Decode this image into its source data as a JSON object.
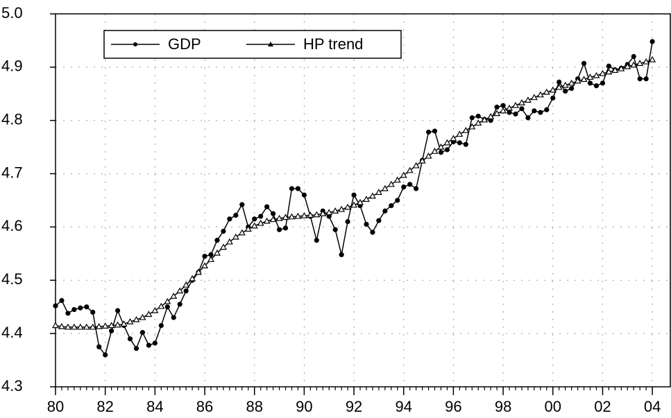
{
  "chart_data": {
    "type": "line",
    "x": [
      1980,
      1980.25,
      1980.5,
      1980.75,
      1981,
      1981.25,
      1981.5,
      1981.75,
      1982,
      1982.25,
      1982.5,
      1982.75,
      1983,
      1983.25,
      1983.5,
      1983.75,
      1984,
      1984.25,
      1984.5,
      1984.75,
      1985,
      1985.25,
      1985.5,
      1985.75,
      1986,
      1986.25,
      1986.5,
      1986.75,
      1987,
      1987.25,
      1987.5,
      1987.75,
      1988,
      1988.25,
      1988.5,
      1988.75,
      1989,
      1989.25,
      1989.5,
      1989.75,
      1990,
      1990.25,
      1990.5,
      1990.75,
      1991,
      1991.25,
      1991.5,
      1991.75,
      1992,
      1992.25,
      1992.5,
      1992.75,
      1993,
      1993.25,
      1993.5,
      1993.75,
      1994,
      1994.25,
      1994.5,
      1994.75,
      1995,
      1995.25,
      1995.5,
      1995.75,
      1996,
      1996.25,
      1996.5,
      1996.75,
      1997,
      1997.25,
      1997.5,
      1997.75,
      1998,
      1998.25,
      1998.5,
      1998.75,
      1999,
      1999.25,
      1999.5,
      1999.75,
      2000,
      2000.25,
      2000.5,
      2000.75,
      2001,
      2001.25,
      2001.5,
      2001.75,
      2002,
      2002.25,
      2002.5,
      2002.75,
      2003,
      2003.25,
      2003.5,
      2003.75,
      2004
    ],
    "series": [
      {
        "name": "GDP",
        "color": "#000000",
        "marker": "circle",
        "values": [
          4.452,
          4.462,
          4.438,
          4.445,
          4.448,
          4.45,
          4.44,
          4.375,
          4.36,
          4.405,
          4.443,
          4.415,
          4.39,
          4.372,
          4.402,
          4.378,
          4.382,
          4.415,
          4.45,
          4.43,
          4.455,
          4.48,
          4.5,
          4.515,
          4.545,
          4.548,
          4.575,
          4.592,
          4.615,
          4.622,
          4.642,
          4.6,
          4.615,
          4.62,
          4.638,
          4.625,
          4.595,
          4.598,
          4.672,
          4.672,
          4.66,
          4.62,
          4.575,
          4.63,
          4.62,
          4.595,
          4.548,
          4.61,
          4.66,
          4.64,
          4.605,
          4.59,
          4.612,
          4.63,
          4.64,
          4.65,
          4.675,
          4.68,
          4.672,
          4.725,
          4.778,
          4.78,
          4.74,
          4.745,
          4.76,
          4.758,
          4.755,
          4.805,
          4.808,
          4.802,
          4.8,
          4.825,
          4.828,
          4.815,
          4.812,
          4.822,
          4.805,
          4.818,
          4.815,
          4.82,
          4.842,
          4.872,
          4.855,
          4.86,
          4.878,
          4.907,
          4.87,
          4.865,
          4.87,
          4.902,
          4.895,
          4.898,
          4.905,
          4.92,
          4.878,
          4.878,
          4.948
        ]
      },
      {
        "name": "HP trend",
        "color": "#000000",
        "marker": "triangle",
        "values": [
          4.415,
          4.413,
          4.412,
          4.412,
          4.412,
          4.412,
          4.412,
          4.413,
          4.414,
          4.415,
          4.416,
          4.418,
          4.422,
          4.426,
          4.43,
          4.436,
          4.443,
          4.451,
          4.46,
          4.47,
          4.48,
          4.491,
          4.503,
          4.515,
          4.527,
          4.539,
          4.551,
          4.562,
          4.572,
          4.581,
          4.589,
          4.596,
          4.602,
          4.607,
          4.611,
          4.614,
          4.616,
          4.618,
          4.619,
          4.62,
          4.621,
          4.622,
          4.623,
          4.625,
          4.627,
          4.63,
          4.633,
          4.637,
          4.641,
          4.646,
          4.652,
          4.658,
          4.665,
          4.672,
          4.68,
          4.688,
          4.697,
          4.706,
          4.715,
          4.724,
          4.733,
          4.742,
          4.75,
          4.758,
          4.766,
          4.774,
          4.781,
          4.788,
          4.795,
          4.801,
          4.807,
          4.813,
          4.818,
          4.823,
          4.828,
          4.833,
          4.838,
          4.843,
          4.848,
          4.853,
          4.857,
          4.862,
          4.866,
          4.87,
          4.874,
          4.877,
          4.881,
          4.884,
          4.888,
          4.891,
          4.894,
          4.897,
          4.901,
          4.904,
          4.907,
          4.91,
          4.914
        ]
      }
    ],
    "xlim": [
      1980,
      2004.75
    ],
    "xticks": [
      {
        "value": 1980,
        "label": "80"
      },
      {
        "value": 1982,
        "label": "82"
      },
      {
        "value": 1984,
        "label": "84"
      },
      {
        "value": 1986,
        "label": "86"
      },
      {
        "value": 1988,
        "label": "88"
      },
      {
        "value": 1990,
        "label": "90"
      },
      {
        "value": 1992,
        "label": "92"
      },
      {
        "value": 1994,
        "label": "94"
      },
      {
        "value": 1996,
        "label": "96"
      },
      {
        "value": 1998,
        "label": "98"
      },
      {
        "value": 2000,
        "label": "00"
      },
      {
        "value": 2002,
        "label": "02"
      },
      {
        "value": 2004,
        "label": "04"
      }
    ],
    "ylim": [
      4.3,
      5.0
    ],
    "yticks": [
      4.3,
      4.4,
      4.5,
      4.6,
      4.7,
      4.8,
      4.9,
      {
        "value": 5.0,
        "label": "5.0"
      }
    ],
    "grid": true,
    "legend": "upper left"
  }
}
